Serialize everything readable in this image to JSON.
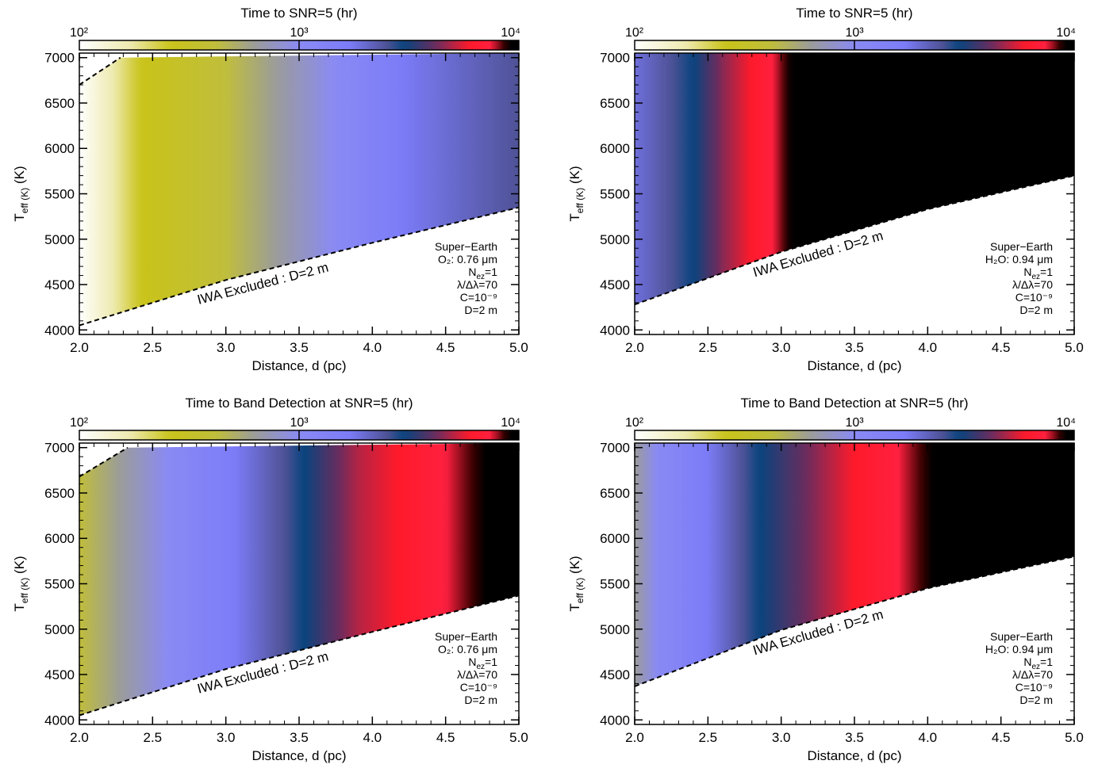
{
  "colorbar": {
    "tick_labels": [
      "10²",
      "10³",
      "10⁴"
    ],
    "tick_values": [
      100,
      1000,
      10000
    ],
    "scale": "log",
    "stops": [
      {
        "v": 100,
        "c": "#ffffff"
      },
      {
        "v": 170,
        "c": "#eeeab0"
      },
      {
        "v": 260,
        "c": "#c9c31a"
      },
      {
        "v": 420,
        "c": "#c0be3c"
      },
      {
        "v": 630,
        "c": "#9b9c9a"
      },
      {
        "v": 1000,
        "c": "#8a8af4"
      },
      {
        "v": 1700,
        "c": "#7c7cf8"
      },
      {
        "v": 2500,
        "c": "#4f5296"
      },
      {
        "v": 3000,
        "c": "#08447e"
      },
      {
        "v": 4200,
        "c": "#6a2c5e"
      },
      {
        "v": 6000,
        "c": "#ff1a2a"
      },
      {
        "v": 7500,
        "c": "#ff2040"
      },
      {
        "v": 8500,
        "c": "#3a0000"
      },
      {
        "v": 9000,
        "c": "#000000"
      },
      {
        "v": 10000,
        "c": "#000000"
      }
    ]
  },
  "chart_data": [
    {
      "type": "heatmap",
      "title": "Time to SNR=5 (hr)",
      "xlabel": "Distance, d (pc)",
      "ylabel": "T_eff (K)",
      "xlim": [
        2.0,
        5.0
      ],
      "ylim": [
        3950,
        7050
      ],
      "xticks": [
        "2.0",
        "2.5",
        "3.0",
        "3.5",
        "4.0",
        "4.5",
        "5.0"
      ],
      "yticks": [
        "4000",
        "4500",
        "5000",
        "5500",
        "6000",
        "6500",
        "7000"
      ],
      "excluded_label": "IWA Excluded : D=2 m",
      "iwa_boundary": {
        "x": [
          2.0,
          3.0,
          4.0,
          5.0
        ],
        "y": [
          4050,
          4550,
          4960,
          5350
        ]
      },
      "upper_excluded": {
        "x": [
          2.0,
          2.28
        ],
        "y": [
          6700,
          7000
        ]
      },
      "time_at_T5500_hr": {
        "x": [
          2.0,
          2.4,
          3.0,
          3.5,
          4.2,
          5.0
        ],
        "y": [
          100,
          250,
          420,
          760,
          1700,
          2500
        ]
      },
      "annotation": [
        "Super−Earth",
        "O₂: 0.76 μm",
        "N_ez=1",
        "λ/Δλ=70",
        "C=10⁻⁹",
        "D=2 m"
      ]
    },
    {
      "type": "heatmap",
      "title": "Time to SNR=5 (hr)",
      "xlabel": "Distance, d (pc)",
      "ylabel": "T_eff (K)",
      "xlim": [
        2.0,
        5.0
      ],
      "ylim": [
        3950,
        7050
      ],
      "xticks": [
        "2.0",
        "2.5",
        "3.0",
        "3.5",
        "4.0",
        "4.5",
        "5.0"
      ],
      "yticks": [
        "4000",
        "4500",
        "5000",
        "5500",
        "6000",
        "6500",
        "7000"
      ],
      "excluded_label": "IWA Excluded : D=2 m",
      "iwa_boundary": {
        "x": [
          2.0,
          3.0,
          4.0,
          5.0
        ],
        "y": [
          4280,
          4860,
          5330,
          5700
        ]
      },
      "time_at_T5500_hr": {
        "x": [
          2.0,
          2.25,
          2.4,
          2.6,
          2.9,
          3.1,
          5.0
        ],
        "y": [
          1900,
          2500,
          3000,
          4500,
          7000,
          9500,
          10000
        ]
      },
      "annotation": [
        "Super−Earth",
        "H₂O: 0.94 μm",
        "N_ez=1",
        "λ/Δλ=70",
        "C=10⁻⁹",
        "D=2 m"
      ]
    },
    {
      "type": "heatmap",
      "title": "Time to Band Detection at SNR=5 (hr)",
      "xlabel": "Distance, d (pc)",
      "ylabel": "T_eff (K)",
      "xlim": [
        2.0,
        5.0
      ],
      "ylim": [
        3950,
        7050
      ],
      "xticks": [
        "2.0",
        "2.5",
        "3.0",
        "3.5",
        "4.0",
        "4.5",
        "5.0"
      ],
      "yticks": [
        "4000",
        "4500",
        "5000",
        "5500",
        "6000",
        "6500",
        "7000"
      ],
      "excluded_label": "IWA Excluded : D=2 m",
      "iwa_boundary": {
        "x": [
          2.0,
          3.0,
          4.0,
          5.0
        ],
        "y": [
          4050,
          4560,
          4970,
          5370
        ]
      },
      "upper_excluded": {
        "x": [
          2.0,
          2.33
        ],
        "y": [
          6680,
          7000
        ]
      },
      "time_at_T5500_hr": {
        "x": [
          2.0,
          2.6,
          3.4,
          3.9,
          4.5,
          4.85,
          5.0
        ],
        "y": [
          420,
          1000,
          2500,
          5000,
          7500,
          9500,
          10000
        ]
      },
      "annotation": [
        "Super−Earth",
        "O₂: 0.76 μm",
        "N_ez=1",
        "λ/Δλ=70",
        "C=10⁻⁹",
        "D=2 m"
      ]
    },
    {
      "type": "heatmap",
      "title": "Time to Band Detection at SNR=5 (hr)",
      "xlabel": "Distance, d (pc)",
      "ylabel": "T_eff (K)",
      "xlim": [
        2.0,
        5.0
      ],
      "ylim": [
        3950,
        7050
      ],
      "xticks": [
        "2.0",
        "2.5",
        "3.0",
        "3.5",
        "4.0",
        "4.5",
        "5.0"
      ],
      "yticks": [
        "4000",
        "4500",
        "5000",
        "5500",
        "6000",
        "6500",
        "7000"
      ],
      "excluded_label": "IWA Excluded : D=2 m",
      "iwa_boundary": {
        "x": [
          2.0,
          3.0,
          4.0,
          5.0
        ],
        "y": [
          4370,
          4990,
          5450,
          5800
        ]
      },
      "time_at_T5500_hr": {
        "x": [
          2.0,
          2.15,
          2.6,
          2.85,
          3.5,
          3.8,
          4.1,
          5.0
        ],
        "y": [
          630,
          1000,
          2000,
          3000,
          6000,
          7500,
          9500,
          10000
        ]
      },
      "annotation": [
        "Super−Earth",
        "H₂O: 0.94 μm",
        "N_ez=1",
        "λ/Δλ=70",
        "C=10⁻⁹",
        "D=2 m"
      ]
    }
  ]
}
